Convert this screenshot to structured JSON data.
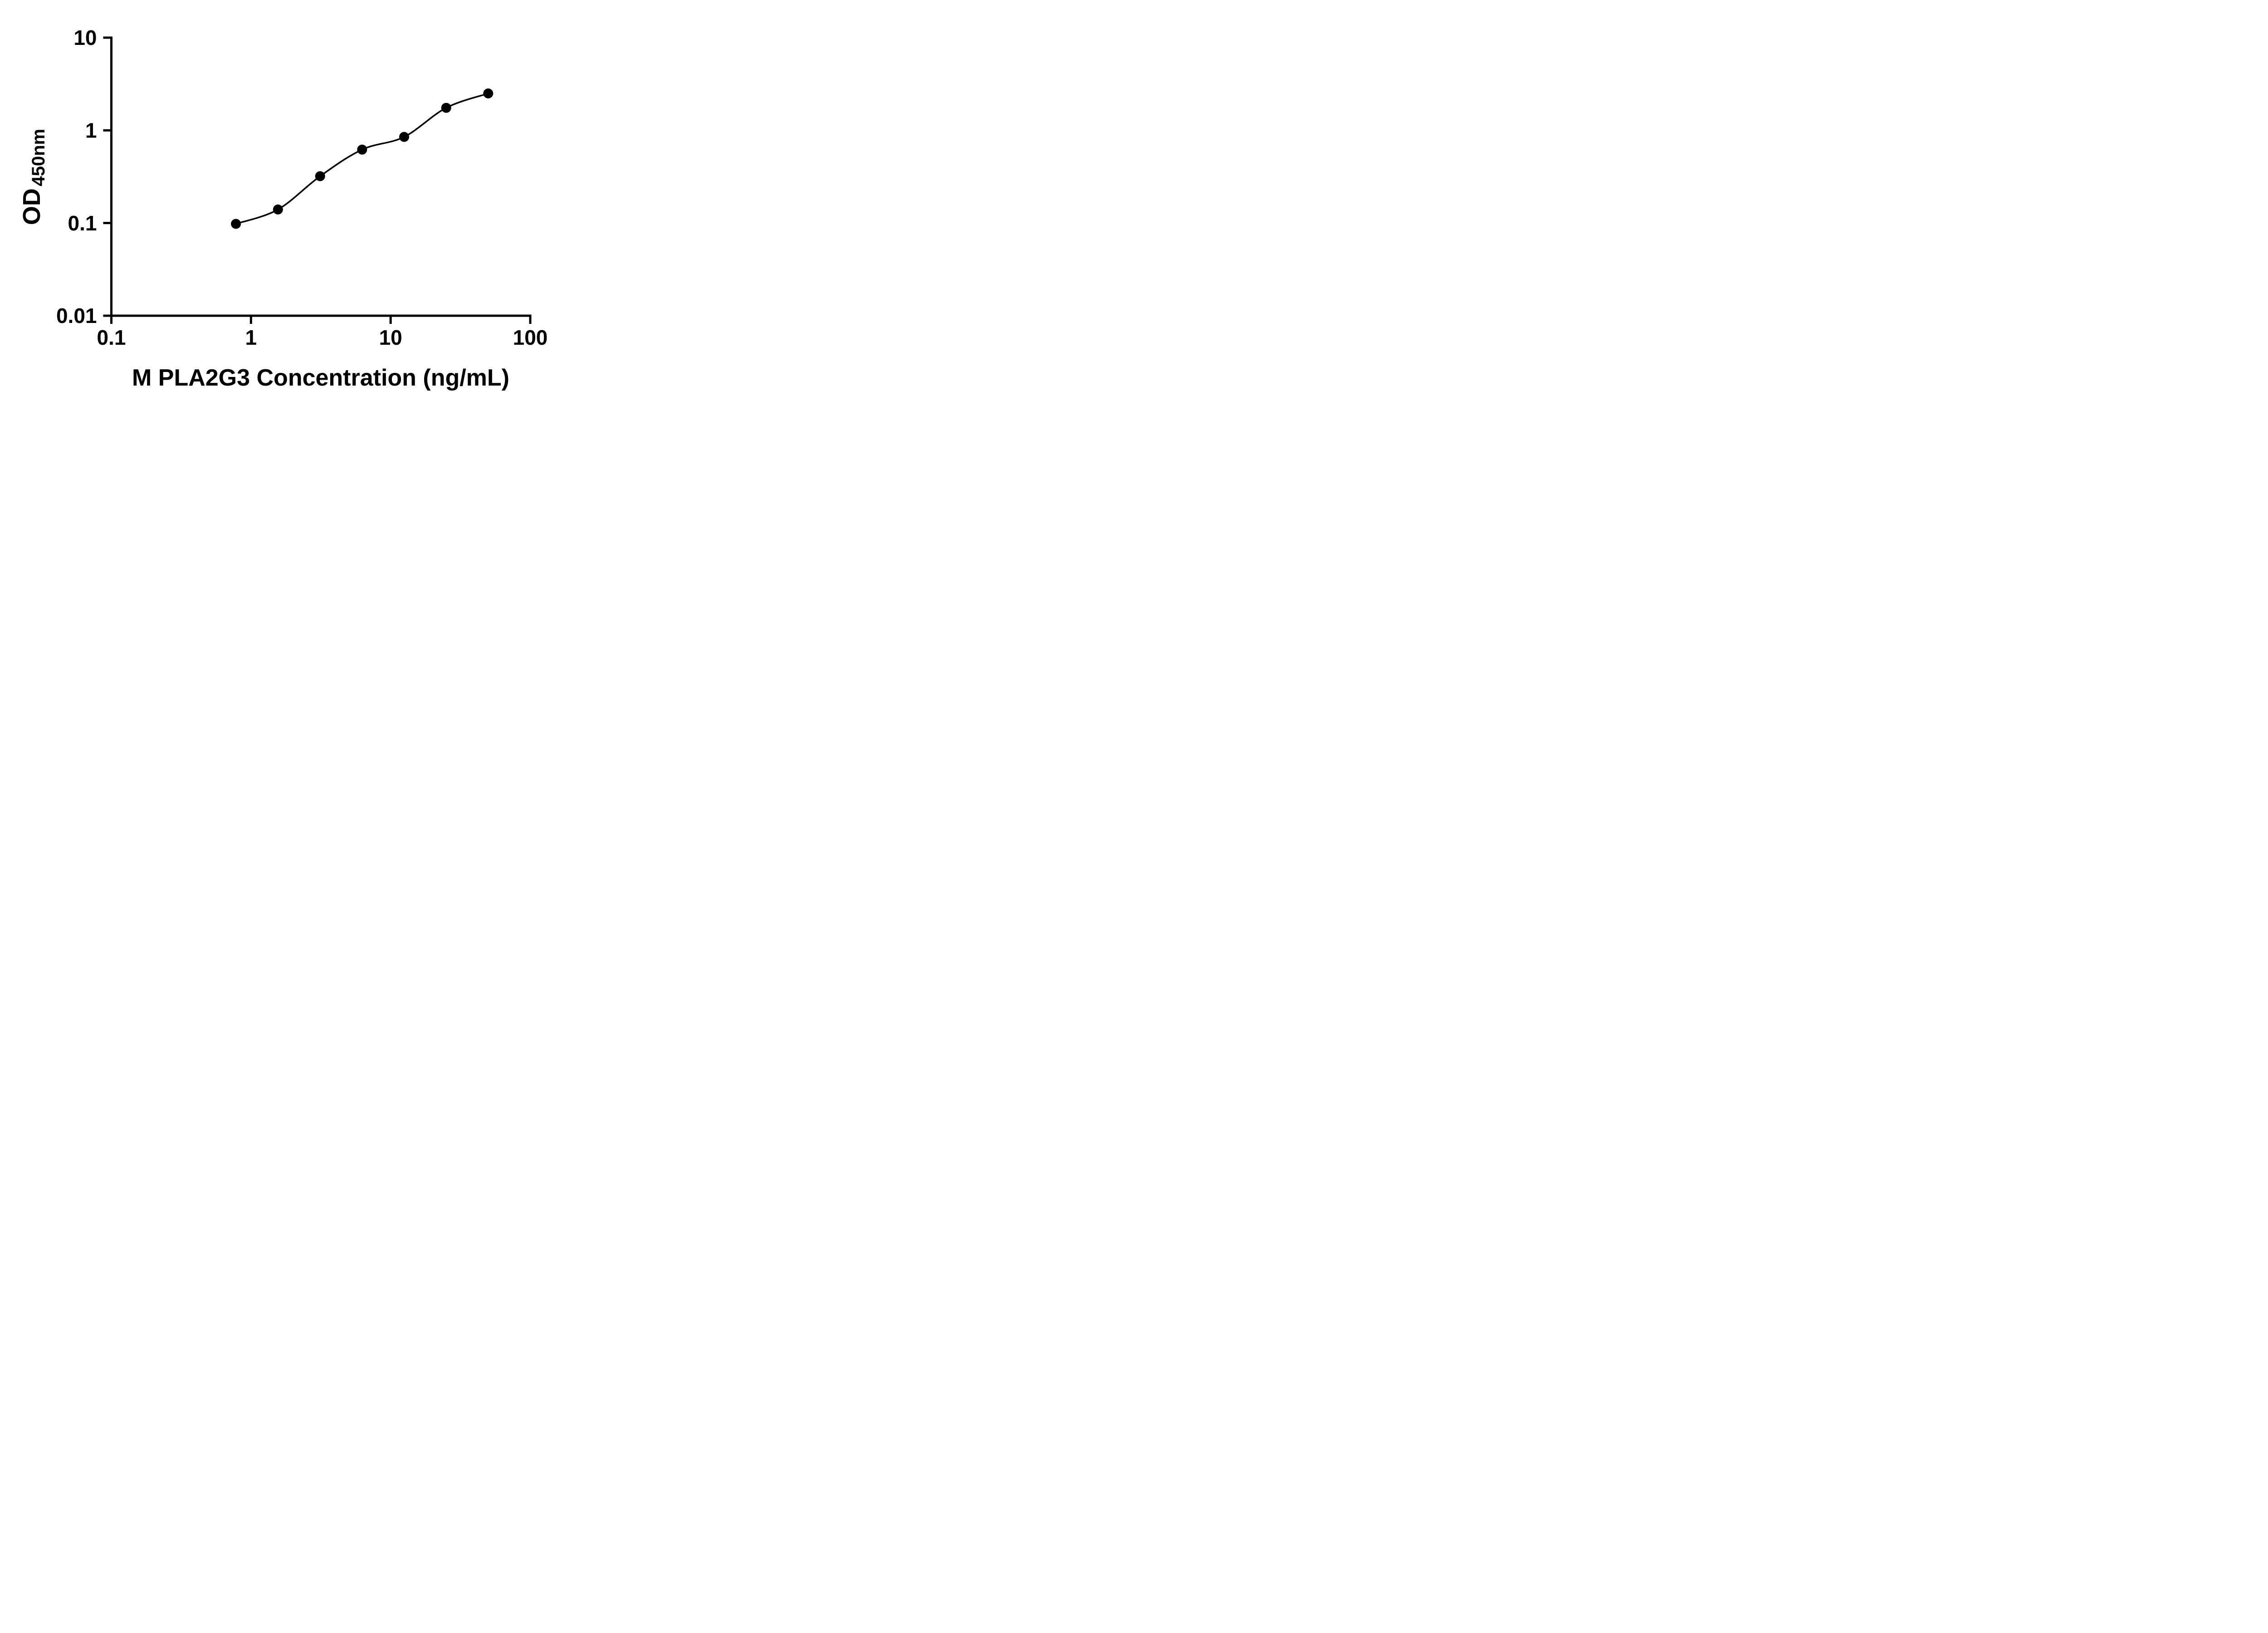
{
  "figure": {
    "background_color": "#ffffff",
    "axis_color": "#000000",
    "point_color": "#000000",
    "curve_color": "#000000"
  },
  "chart_data": {
    "type": "scatter",
    "title": "",
    "xlabel": "M PLA2G3 Concentration (ng/mL)",
    "ylabel_main": "OD",
    "ylabel_sub": "450nm",
    "x_scale": "log",
    "y_scale": "log",
    "xlim": [
      0.1,
      100
    ],
    "ylim": [
      0.01,
      10
    ],
    "x": [
      0.78,
      1.56,
      3.125,
      6.25,
      12.5,
      25,
      50
    ],
    "y": [
      0.098,
      0.14,
      0.32,
      0.62,
      0.85,
      1.75,
      2.5
    ],
    "x_ticks": [
      0.1,
      1,
      10,
      100
    ],
    "x_tick_labels": [
      "0.1",
      "1",
      "10",
      "100"
    ],
    "y_ticks": [
      0.01,
      0.1,
      1,
      10
    ],
    "y_tick_labels": [
      "0.01",
      "0.1",
      "1",
      "10"
    ],
    "curve": "smooth fit through points",
    "grid": false,
    "legend": "none"
  }
}
